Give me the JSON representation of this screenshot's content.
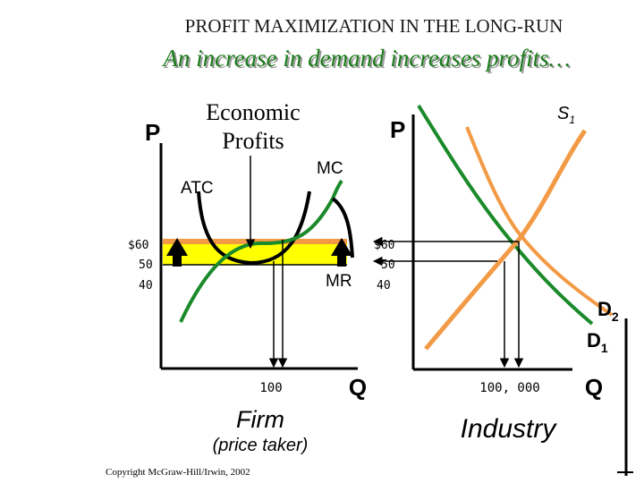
{
  "slide": {
    "title": "PROFIT MAXIMIZATION IN THE LONG-RUN",
    "subtitle": "An increase in demand increases profits…",
    "copyright": "Copyright McGraw-Hill/Irwin, 2002"
  },
  "firm": {
    "y_axis": "P",
    "x_axis": "Q",
    "caption": "Firm",
    "subcaption": "(price taker)",
    "price_labels": [
      "$60",
      "50",
      "40"
    ],
    "quantity_label": "100",
    "curves": {
      "mc": "MC",
      "atc": "ATC",
      "mr": "MR"
    },
    "annotation": "Economic Profits"
  },
  "industry": {
    "y_axis": "P",
    "x_axis": "Q",
    "caption": "Industry",
    "price_labels": [
      "$60",
      "50",
      "40"
    ],
    "quantity_label": "100, 000",
    "supply": {
      "label": "S",
      "sub": "1"
    },
    "demand_new": {
      "label": "D",
      "sub": "2"
    },
    "demand_old": {
      "label": "D",
      "sub": "1"
    }
  },
  "colors": {
    "title": "#1a1a1a",
    "subtitle": "#1a7a1a",
    "orange": "#f29a45",
    "green": "#1a8a2a",
    "yellow": "#ffff00",
    "black": "#000000"
  }
}
